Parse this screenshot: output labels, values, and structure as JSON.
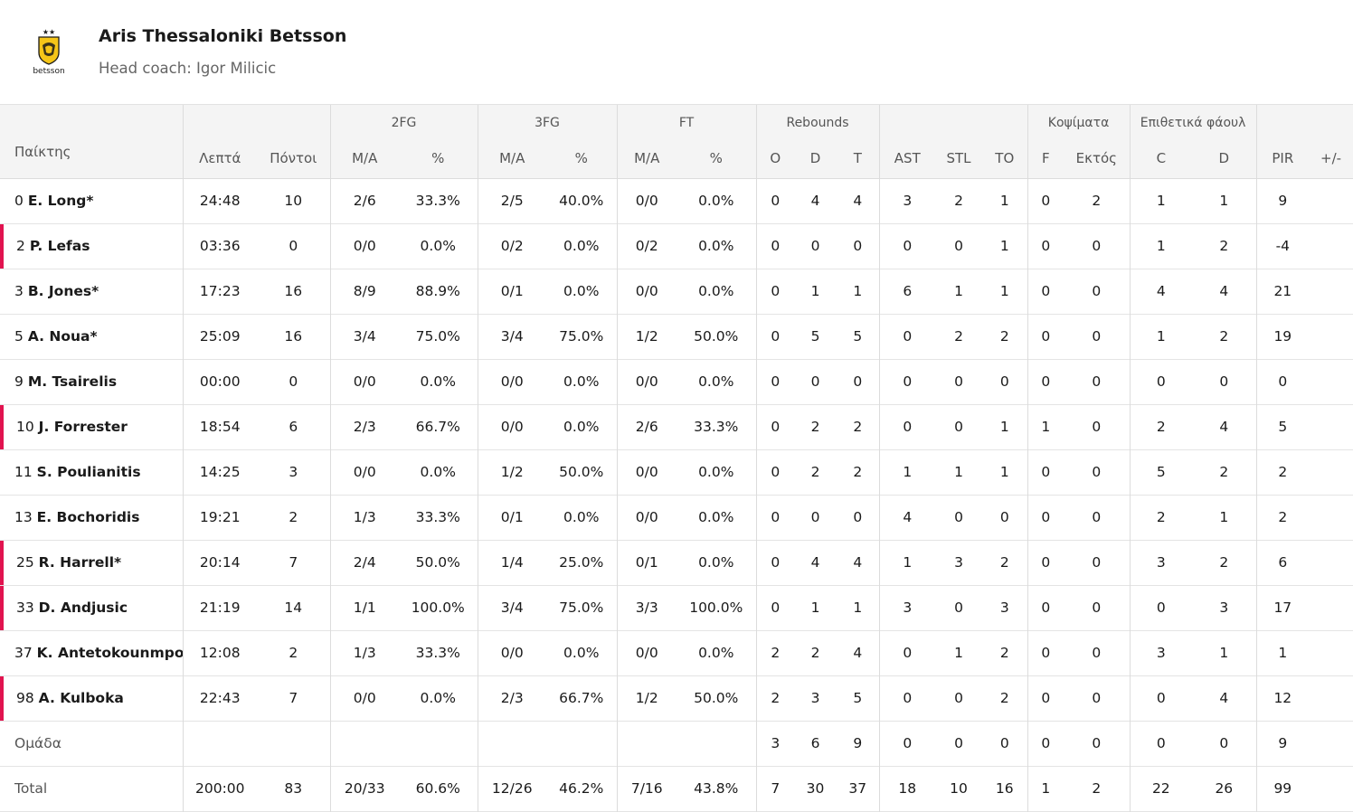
{
  "team": {
    "name": "Aris Thessaloniki Betsson",
    "coach": "Head coach: Igor Milicic",
    "logo": {
      "text": "betsson",
      "stars": "★★",
      "colors": {
        "shield": "#f5c518",
        "outline": "#1a1a1a"
      }
    }
  },
  "accent_color": "#e1134f",
  "groups": {
    "fg2": "2FG",
    "fg3": "3FG",
    "ft": "FT",
    "rebounds": "Rebounds",
    "blocks": "Κοψίματα",
    "fouls": "Επιθετικά φάουλ"
  },
  "columns": {
    "player": "Παίκτης",
    "min": "Λεπτά",
    "pts": "Πόντοι",
    "fg2_ma": "M/A",
    "fg2_pct": "%",
    "fg3_ma": "M/A",
    "fg3_pct": "%",
    "ft_ma": "M/A",
    "ft_pct": "%",
    "reb_o": "O",
    "reb_d": "D",
    "reb_t": "T",
    "ast": "AST",
    "stl": "STL",
    "to": "TO",
    "blk_f": "F",
    "blk_a": "Εκτός",
    "foul_c": "C",
    "foul_d": "D",
    "pir": "PIR",
    "pm": "+/-"
  },
  "players": [
    {
      "num": "0",
      "name": "E. Long*",
      "bench": false,
      "min": "24:48",
      "pts": "10",
      "fg2_ma": "2/6",
      "fg2_pct": "33.3%",
      "fg3_ma": "2/5",
      "fg3_pct": "40.0%",
      "ft_ma": "0/0",
      "ft_pct": "0.0%",
      "reb_o": "0",
      "reb_d": "4",
      "reb_t": "4",
      "ast": "3",
      "stl": "2",
      "to": "1",
      "blk_f": "0",
      "blk_a": "2",
      "foul_c": "1",
      "foul_d": "1",
      "pir": "9",
      "pm": ""
    },
    {
      "num": "2",
      "name": "P. Lefas",
      "bench": true,
      "min": "03:36",
      "pts": "0",
      "fg2_ma": "0/0",
      "fg2_pct": "0.0%",
      "fg3_ma": "0/2",
      "fg3_pct": "0.0%",
      "ft_ma": "0/2",
      "ft_pct": "0.0%",
      "reb_o": "0",
      "reb_d": "0",
      "reb_t": "0",
      "ast": "0",
      "stl": "0",
      "to": "1",
      "blk_f": "0",
      "blk_a": "0",
      "foul_c": "1",
      "foul_d": "2",
      "pir": "-4",
      "pm": ""
    },
    {
      "num": "3",
      "name": "B. Jones*",
      "bench": false,
      "min": "17:23",
      "pts": "16",
      "fg2_ma": "8/9",
      "fg2_pct": "88.9%",
      "fg3_ma": "0/1",
      "fg3_pct": "0.0%",
      "ft_ma": "0/0",
      "ft_pct": "0.0%",
      "reb_o": "0",
      "reb_d": "1",
      "reb_t": "1",
      "ast": "6",
      "stl": "1",
      "to": "1",
      "blk_f": "0",
      "blk_a": "0",
      "foul_c": "4",
      "foul_d": "4",
      "pir": "21",
      "pm": ""
    },
    {
      "num": "5",
      "name": "A. Noua*",
      "bench": false,
      "min": "25:09",
      "pts": "16",
      "fg2_ma": "3/4",
      "fg2_pct": "75.0%",
      "fg3_ma": "3/4",
      "fg3_pct": "75.0%",
      "ft_ma": "1/2",
      "ft_pct": "50.0%",
      "reb_o": "0",
      "reb_d": "5",
      "reb_t": "5",
      "ast": "0",
      "stl": "2",
      "to": "2",
      "blk_f": "0",
      "blk_a": "0",
      "foul_c": "1",
      "foul_d": "2",
      "pir": "19",
      "pm": ""
    },
    {
      "num": "9",
      "name": "M. Tsairelis",
      "bench": false,
      "min": "00:00",
      "pts": "0",
      "fg2_ma": "0/0",
      "fg2_pct": "0.0%",
      "fg3_ma": "0/0",
      "fg3_pct": "0.0%",
      "ft_ma": "0/0",
      "ft_pct": "0.0%",
      "reb_o": "0",
      "reb_d": "0",
      "reb_t": "0",
      "ast": "0",
      "stl": "0",
      "to": "0",
      "blk_f": "0",
      "blk_a": "0",
      "foul_c": "0",
      "foul_d": "0",
      "pir": "0",
      "pm": ""
    },
    {
      "num": "10",
      "name": "J. Forrester",
      "bench": true,
      "min": "18:54",
      "pts": "6",
      "fg2_ma": "2/3",
      "fg2_pct": "66.7%",
      "fg3_ma": "0/0",
      "fg3_pct": "0.0%",
      "ft_ma": "2/6",
      "ft_pct": "33.3%",
      "reb_o": "0",
      "reb_d": "2",
      "reb_t": "2",
      "ast": "0",
      "stl": "0",
      "to": "1",
      "blk_f": "1",
      "blk_a": "0",
      "foul_c": "2",
      "foul_d": "4",
      "pir": "5",
      "pm": ""
    },
    {
      "num": "11",
      "name": "S. Poulianitis",
      "bench": false,
      "min": "14:25",
      "pts": "3",
      "fg2_ma": "0/0",
      "fg2_pct": "0.0%",
      "fg3_ma": "1/2",
      "fg3_pct": "50.0%",
      "ft_ma": "0/0",
      "ft_pct": "0.0%",
      "reb_o": "0",
      "reb_d": "2",
      "reb_t": "2",
      "ast": "1",
      "stl": "1",
      "to": "1",
      "blk_f": "0",
      "blk_a": "0",
      "foul_c": "5",
      "foul_d": "2",
      "pir": "2",
      "pm": ""
    },
    {
      "num": "13",
      "name": "E. Bochoridis",
      "bench": false,
      "min": "19:21",
      "pts": "2",
      "fg2_ma": "1/3",
      "fg2_pct": "33.3%",
      "fg3_ma": "0/1",
      "fg3_pct": "0.0%",
      "ft_ma": "0/0",
      "ft_pct": "0.0%",
      "reb_o": "0",
      "reb_d": "0",
      "reb_t": "0",
      "ast": "4",
      "stl": "0",
      "to": "0",
      "blk_f": "0",
      "blk_a": "0",
      "foul_c": "2",
      "foul_d": "1",
      "pir": "2",
      "pm": ""
    },
    {
      "num": "25",
      "name": "R. Harrell*",
      "bench": true,
      "min": "20:14",
      "pts": "7",
      "fg2_ma": "2/4",
      "fg2_pct": "50.0%",
      "fg3_ma": "1/4",
      "fg3_pct": "25.0%",
      "ft_ma": "0/1",
      "ft_pct": "0.0%",
      "reb_o": "0",
      "reb_d": "4",
      "reb_t": "4",
      "ast": "1",
      "stl": "3",
      "to": "2",
      "blk_f": "0",
      "blk_a": "0",
      "foul_c": "3",
      "foul_d": "2",
      "pir": "6",
      "pm": ""
    },
    {
      "num": "33",
      "name": "D. Andjusic",
      "bench": true,
      "min": "21:19",
      "pts": "14",
      "fg2_ma": "1/1",
      "fg2_pct": "100.0%",
      "fg3_ma": "3/4",
      "fg3_pct": "75.0%",
      "ft_ma": "3/3",
      "ft_pct": "100.0%",
      "reb_o": "0",
      "reb_d": "1",
      "reb_t": "1",
      "ast": "3",
      "stl": "0",
      "to": "3",
      "blk_f": "0",
      "blk_a": "0",
      "foul_c": "0",
      "foul_d": "3",
      "pir": "17",
      "pm": ""
    },
    {
      "num": "37",
      "name": "K. Antetokounmpo*",
      "bench": false,
      "min": "12:08",
      "pts": "2",
      "fg2_ma": "1/3",
      "fg2_pct": "33.3%",
      "fg3_ma": "0/0",
      "fg3_pct": "0.0%",
      "ft_ma": "0/0",
      "ft_pct": "0.0%",
      "reb_o": "2",
      "reb_d": "2",
      "reb_t": "4",
      "ast": "0",
      "stl": "1",
      "to": "2",
      "blk_f": "0",
      "blk_a": "0",
      "foul_c": "3",
      "foul_d": "1",
      "pir": "1",
      "pm": ""
    },
    {
      "num": "98",
      "name": "A. Kulboka",
      "bench": true,
      "min": "22:43",
      "pts": "7",
      "fg2_ma": "0/0",
      "fg2_pct": "0.0%",
      "fg3_ma": "2/3",
      "fg3_pct": "66.7%",
      "ft_ma": "1/2",
      "ft_pct": "50.0%",
      "reb_o": "2",
      "reb_d": "3",
      "reb_t": "5",
      "ast": "0",
      "stl": "0",
      "to": "2",
      "blk_f": "0",
      "blk_a": "0",
      "foul_c": "0",
      "foul_d": "4",
      "pir": "12",
      "pm": ""
    }
  ],
  "team_row": {
    "label": "Ομάδα",
    "min": "",
    "pts": "",
    "fg2_ma": "",
    "fg2_pct": "",
    "fg3_ma": "",
    "fg3_pct": "",
    "ft_ma": "",
    "ft_pct": "",
    "reb_o": "3",
    "reb_d": "6",
    "reb_t": "9",
    "ast": "0",
    "stl": "0",
    "to": "0",
    "blk_f": "0",
    "blk_a": "0",
    "foul_c": "0",
    "foul_d": "0",
    "pir": "9",
    "pm": ""
  },
  "total_row": {
    "label": "Total",
    "min": "200:00",
    "pts": "83",
    "fg2_ma": "20/33",
    "fg2_pct": "60.6%",
    "fg3_ma": "12/26",
    "fg3_pct": "46.2%",
    "ft_ma": "7/16",
    "ft_pct": "43.8%",
    "reb_o": "7",
    "reb_d": "30",
    "reb_t": "37",
    "ast": "18",
    "stl": "10",
    "to": "16",
    "blk_f": "1",
    "blk_a": "2",
    "foul_c": "22",
    "foul_d": "26",
    "pir": "99",
    "pm": ""
  }
}
